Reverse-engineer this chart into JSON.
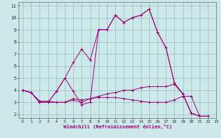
{
  "xlabel": "Windchill (Refroidissement éolien,°C)",
  "xlim": [
    -0.5,
    23
  ],
  "ylim": [
    1.7,
    11.3
  ],
  "yticks": [
    2,
    3,
    4,
    5,
    6,
    7,
    8,
    9,
    10,
    11
  ],
  "xticks": [
    0,
    1,
    2,
    3,
    4,
    5,
    6,
    7,
    8,
    9,
    10,
    11,
    12,
    13,
    14,
    15,
    16,
    17,
    18,
    19,
    20,
    21,
    22,
    23
  ],
  "bg_color": "#cce8e8",
  "line_color": "#990077",
  "grid_color": "#99bbbb",
  "series": [
    [
      4.0,
      3.8,
      3.0,
      3.0,
      3.9,
      5.0,
      3.9,
      2.8,
      3.0,
      9.0,
      9.0,
      10.2,
      9.6,
      10.0,
      10.2,
      10.7,
      8.8,
      7.5,
      4.6,
      3.7,
      2.1,
      1.85,
      1.85
    ],
    [
      4.0,
      3.8,
      3.0,
      3.0,
      3.9,
      5.0,
      6.3,
      7.4,
      6.5,
      9.0,
      9.0,
      10.2,
      9.6,
      10.0,
      10.2,
      10.7,
      8.8,
      7.5,
      4.6,
      3.7,
      2.1,
      1.85,
      1.85
    ],
    [
      4.0,
      3.8,
      3.0,
      3.0,
      3.0,
      3.0,
      3.2,
      3.0,
      3.3,
      3.5,
      3.7,
      3.8,
      4.0,
      4.0,
      4.2,
      4.3,
      4.3,
      4.3,
      4.5,
      3.7,
      2.1,
      1.85,
      1.85
    ],
    [
      4.0,
      3.8,
      3.1,
      3.1,
      3.0,
      3.0,
      3.3,
      3.2,
      3.3,
      3.4,
      3.4,
      3.4,
      3.3,
      3.2,
      3.1,
      3.0,
      3.0,
      3.0,
      3.2,
      3.5,
      3.5,
      1.85,
      1.85
    ]
  ],
  "x_values": [
    0,
    1,
    2,
    3,
    4,
    5,
    6,
    7,
    8,
    9,
    10,
    11,
    12,
    13,
    14,
    15,
    16,
    17,
    18,
    19,
    20,
    21,
    22
  ]
}
